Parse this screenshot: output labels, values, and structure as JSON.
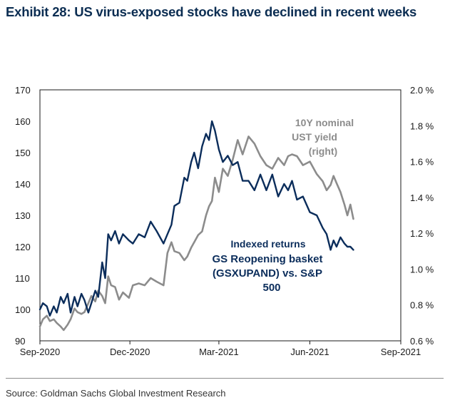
{
  "title": "Exhibit 28: US virus-exposed stocks have declined in recent weeks",
  "source": "Source: Goldman Sachs Global Investment Research",
  "colors": {
    "navy": "#0b2d5b",
    "gray": "#8c8c8c",
    "title": "#0b2d52"
  },
  "chart_data": {
    "type": "line",
    "grid": false,
    "x_ticks": [
      "Sep-2020",
      "Dec-2020",
      "Mar-2021",
      "Jun-2021",
      "Sep-2021"
    ],
    "x_range": [
      "2020-09-01",
      "2021-09-01"
    ],
    "y_left": {
      "ticks": [
        "90",
        "100",
        "110",
        "120",
        "130",
        "140",
        "150",
        "160",
        "170"
      ],
      "range": [
        90,
        170
      ]
    },
    "y_right": {
      "ticks": [
        "0.6 %",
        "0.8 %",
        "1.0 %",
        "1.2 %",
        "1.4 %",
        "1.6 %",
        "1.8 %",
        "2.0 %"
      ],
      "range": [
        0.6,
        2.0
      ]
    },
    "series": [
      {
        "name": "Indexed returns GS Reopening basket (GSXUPAND) vs. S&P 500",
        "label_lines": [
          "Indexed returns",
          "GS Reopening basket",
          "(GSXUPAND) vs. S&P",
          "500"
        ],
        "axis": "left",
        "color": "#0b2d5b",
        "x": [
          "2020-09-01",
          "2020-09-04",
          "2020-09-08",
          "2020-09-11",
          "2020-09-15",
          "2020-09-18",
          "2020-09-22",
          "2020-09-25",
          "2020-09-29",
          "2020-10-02",
          "2020-10-06",
          "2020-10-09",
          "2020-10-13",
          "2020-10-16",
          "2020-10-20",
          "2020-10-23",
          "2020-10-27",
          "2020-10-30",
          "2020-11-03",
          "2020-11-06",
          "2020-11-09",
          "2020-11-12",
          "2020-11-16",
          "2020-11-20",
          "2020-11-24",
          "2020-11-30",
          "2020-12-04",
          "2020-12-10",
          "2020-12-16",
          "2020-12-22",
          "2020-12-28",
          "2021-01-04",
          "2021-01-08",
          "2021-01-12",
          "2021-01-15",
          "2021-01-20",
          "2021-01-25",
          "2021-01-28",
          "2021-02-01",
          "2021-02-04",
          "2021-02-08",
          "2021-02-12",
          "2021-02-16",
          "2021-02-19",
          "2021-02-22",
          "2021-02-25",
          "2021-03-01",
          "2021-03-05",
          "2021-03-10",
          "2021-03-15",
          "2021-03-20",
          "2021-03-25",
          "2021-03-31",
          "2021-04-06",
          "2021-04-12",
          "2021-04-18",
          "2021-04-24",
          "2021-04-30",
          "2021-05-06",
          "2021-05-10",
          "2021-05-14",
          "2021-05-19",
          "2021-05-25",
          "2021-06-01",
          "2021-06-08",
          "2021-06-14",
          "2021-06-18",
          "2021-06-22",
          "2021-06-25",
          "2021-06-28",
          "2021-07-02",
          "2021-07-06",
          "2021-07-09",
          "2021-07-12",
          "2021-07-15"
        ],
        "values": [
          100,
          102,
          101,
          98,
          101,
          99,
          104,
          102,
          105,
          99,
          104,
          101,
          105,
          103,
          99,
          102,
          106,
          104,
          115,
          110,
          124,
          122,
          125,
          121,
          124,
          122,
          121,
          124,
          123,
          128,
          125,
          121,
          124,
          127,
          133,
          134,
          142,
          141,
          147,
          150,
          145,
          152,
          156,
          154,
          160,
          157,
          151,
          147,
          149,
          146,
          147,
          141,
          141,
          138,
          143,
          138,
          143,
          136,
          140,
          138,
          141,
          135,
          136,
          131,
          130,
          126,
          124,
          119,
          122,
          120,
          123,
          121,
          120,
          120,
          119
        ]
      },
      {
        "name": "10Y nominal UST yield (right)",
        "label_lines": [
          "10Y nominal",
          "UST yield",
          "(right)"
        ],
        "axis": "right",
        "color": "#8c8c8c",
        "x": [
          "2020-09-01",
          "2020-09-04",
          "2020-09-08",
          "2020-09-11",
          "2020-09-15",
          "2020-09-18",
          "2020-09-22",
          "2020-09-25",
          "2020-09-29",
          "2020-10-02",
          "2020-10-06",
          "2020-10-09",
          "2020-10-13",
          "2020-10-16",
          "2020-10-20",
          "2020-10-23",
          "2020-10-27",
          "2020-10-30",
          "2020-11-03",
          "2020-11-06",
          "2020-11-09",
          "2020-11-12",
          "2020-11-16",
          "2020-11-20",
          "2020-11-24",
          "2020-11-30",
          "2020-12-04",
          "2020-12-10",
          "2020-12-16",
          "2020-12-22",
          "2020-12-28",
          "2021-01-04",
          "2021-01-08",
          "2021-01-12",
          "2021-01-15",
          "2021-01-20",
          "2021-01-25",
          "2021-01-28",
          "2021-02-01",
          "2021-02-04",
          "2021-02-08",
          "2021-02-12",
          "2021-02-16",
          "2021-02-19",
          "2021-02-22",
          "2021-02-25",
          "2021-03-01",
          "2021-03-05",
          "2021-03-10",
          "2021-03-15",
          "2021-03-20",
          "2021-03-25",
          "2021-03-31",
          "2021-04-06",
          "2021-04-12",
          "2021-04-18",
          "2021-04-24",
          "2021-04-30",
          "2021-05-06",
          "2021-05-10",
          "2021-05-14",
          "2021-05-19",
          "2021-05-25",
          "2021-06-01",
          "2021-06-08",
          "2021-06-14",
          "2021-06-18",
          "2021-06-22",
          "2021-06-25",
          "2021-06-28",
          "2021-07-02",
          "2021-07-06",
          "2021-07-09",
          "2021-07-12",
          "2021-07-15"
        ],
        "values": [
          0.68,
          0.72,
          0.74,
          0.71,
          0.72,
          0.7,
          0.68,
          0.66,
          0.69,
          0.72,
          0.78,
          0.76,
          0.75,
          0.76,
          0.81,
          0.85,
          0.82,
          0.88,
          0.85,
          0.81,
          0.96,
          0.91,
          0.9,
          0.83,
          0.87,
          0.84,
          0.91,
          0.92,
          0.91,
          0.95,
          0.93,
          0.91,
          1.09,
          1.15,
          1.1,
          1.09,
          1.05,
          1.07,
          1.12,
          1.15,
          1.19,
          1.21,
          1.3,
          1.35,
          1.38,
          1.51,
          1.43,
          1.56,
          1.52,
          1.61,
          1.72,
          1.64,
          1.74,
          1.7,
          1.63,
          1.58,
          1.56,
          1.62,
          1.58,
          1.63,
          1.64,
          1.63,
          1.58,
          1.6,
          1.53,
          1.49,
          1.44,
          1.47,
          1.52,
          1.48,
          1.43,
          1.36,
          1.3,
          1.36,
          1.28
        ]
      }
    ]
  }
}
